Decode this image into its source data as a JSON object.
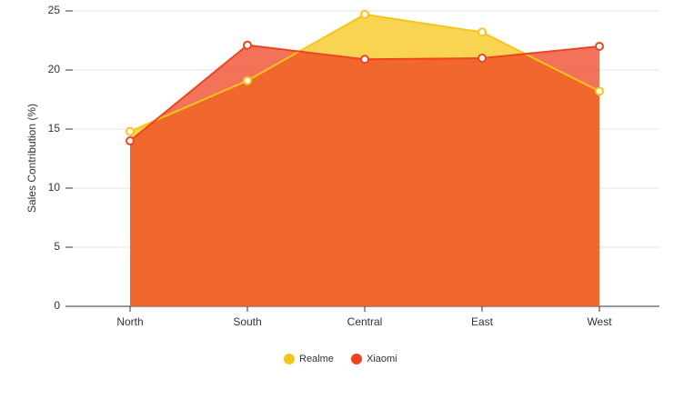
{
  "chart_data": {
    "type": "area",
    "y_label": "Sales Contribution (%)",
    "categories": [
      "North",
      "South",
      "Central",
      "East",
      "West"
    ],
    "series": [
      {
        "name": "Realme",
        "color": "#f5c518",
        "values": [
          14.8,
          19.1,
          24.7,
          23.2,
          18.2
        ]
      },
      {
        "name": "Xiaomi",
        "color": "#ee4422",
        "values": [
          14.0,
          22.1,
          20.9,
          21.0,
          22.0
        ]
      }
    ],
    "ylim": [
      0,
      25
    ],
    "yticks": [
      0,
      5,
      10,
      15,
      20,
      25
    ],
    "grid": true
  }
}
